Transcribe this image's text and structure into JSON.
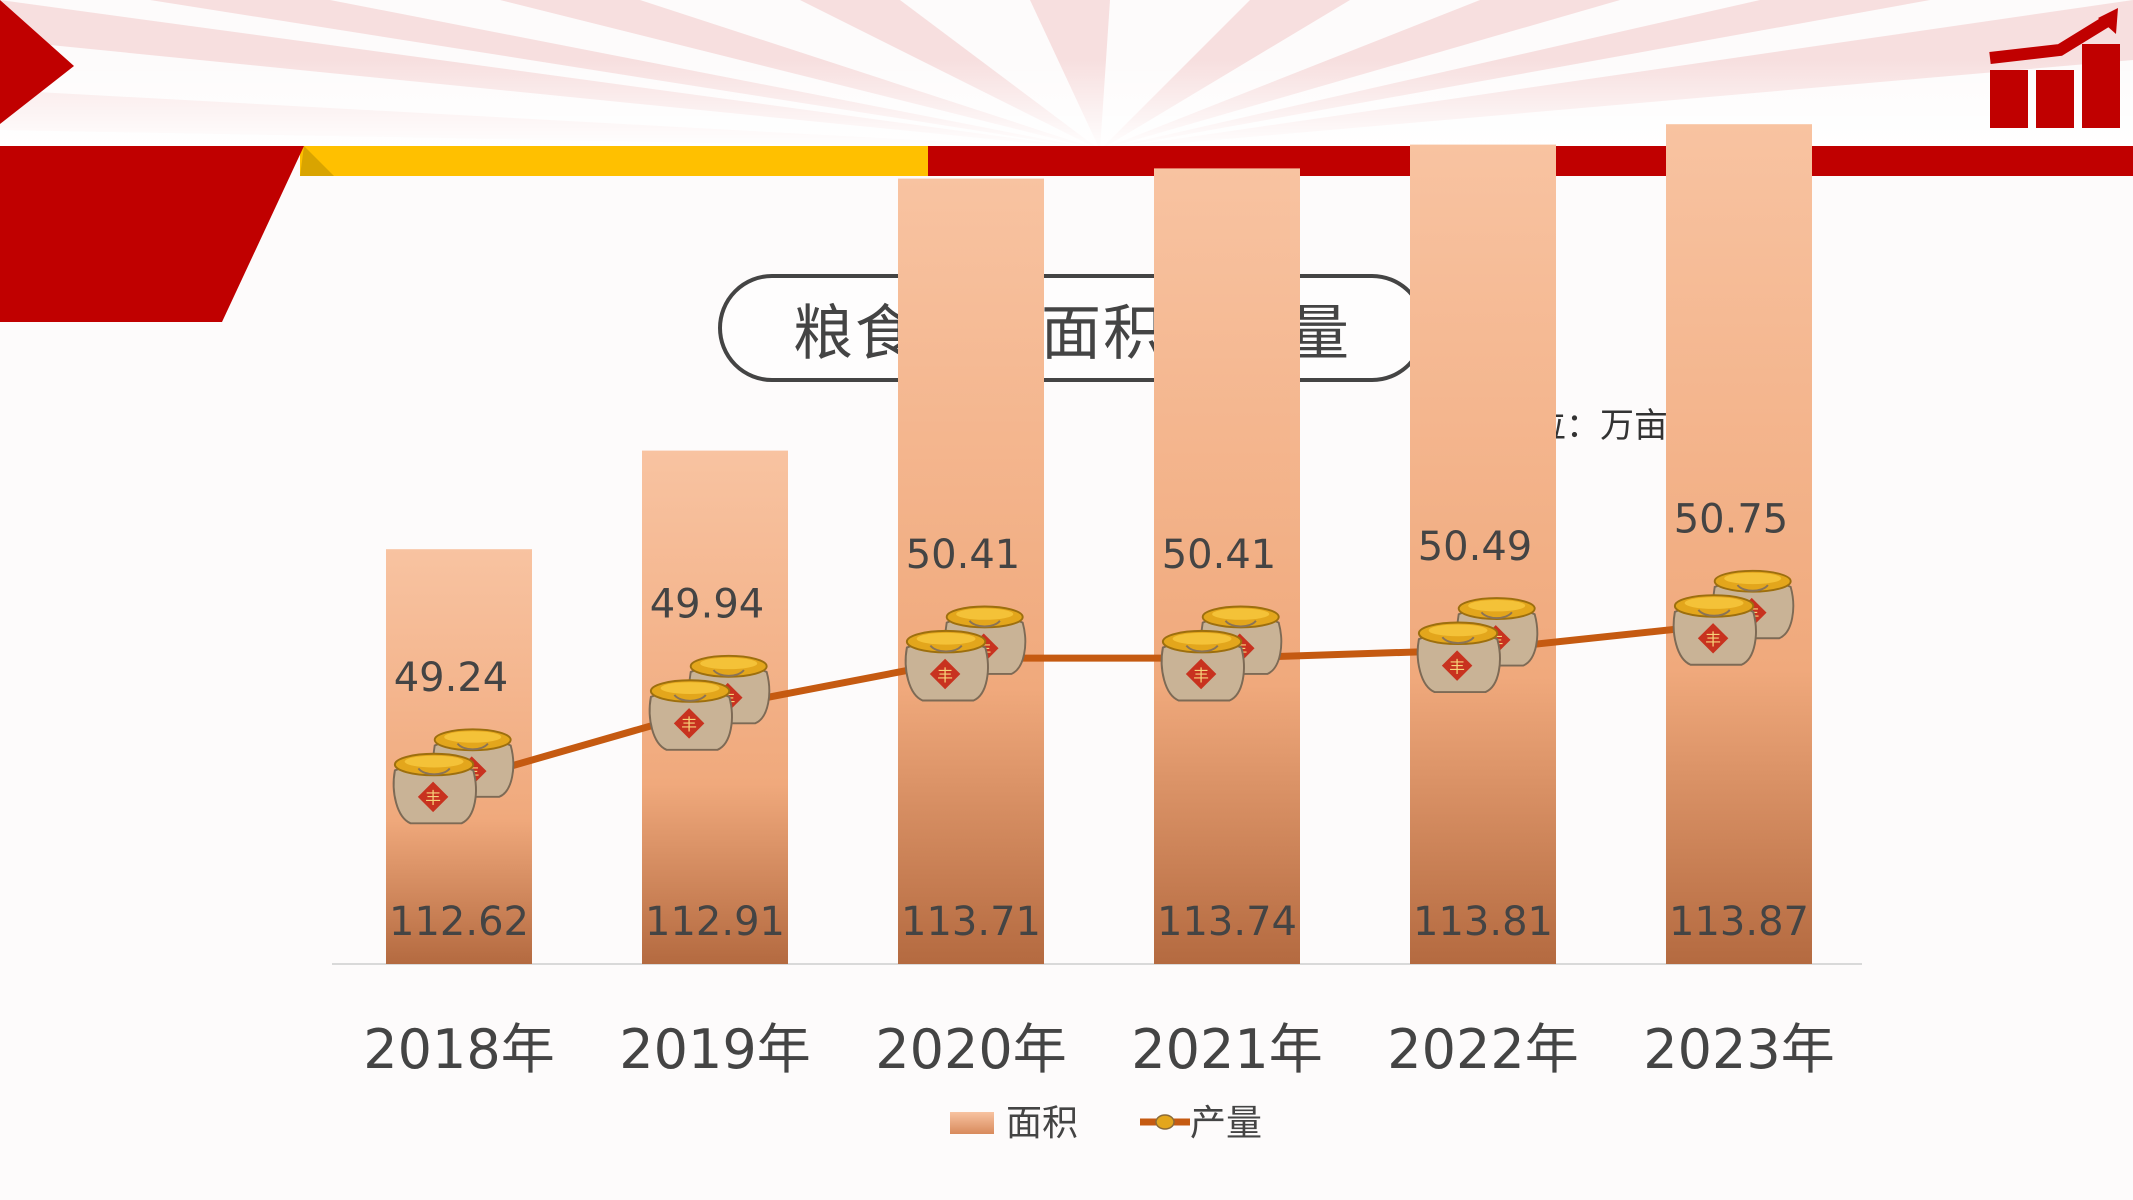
{
  "title": "粮食播种面积和产量",
  "unit_label": "计量单位：万亩、万吨",
  "colors": {
    "red": "#c00000",
    "yellow": "#ffc000",
    "bar_top": "#f8c3a1",
    "bar_bottom": "#b46a40",
    "line": "#c55a11",
    "text": "#444444"
  },
  "chart_data": {
    "type": "bar",
    "categories": [
      "2018年",
      "2019年",
      "2020年",
      "2021年",
      "2022年",
      "2023年"
    ],
    "series": [
      {
        "name": "面积",
        "type": "bar",
        "values": [
          112.62,
          112.91,
          113.71,
          113.74,
          113.81,
          113.87
        ]
      },
      {
        "name": "产量",
        "type": "line",
        "values": [
          49.24,
          49.94,
          50.41,
          50.41,
          50.49,
          50.75
        ]
      }
    ],
    "legend_position": "bottom",
    "grid": false
  }
}
